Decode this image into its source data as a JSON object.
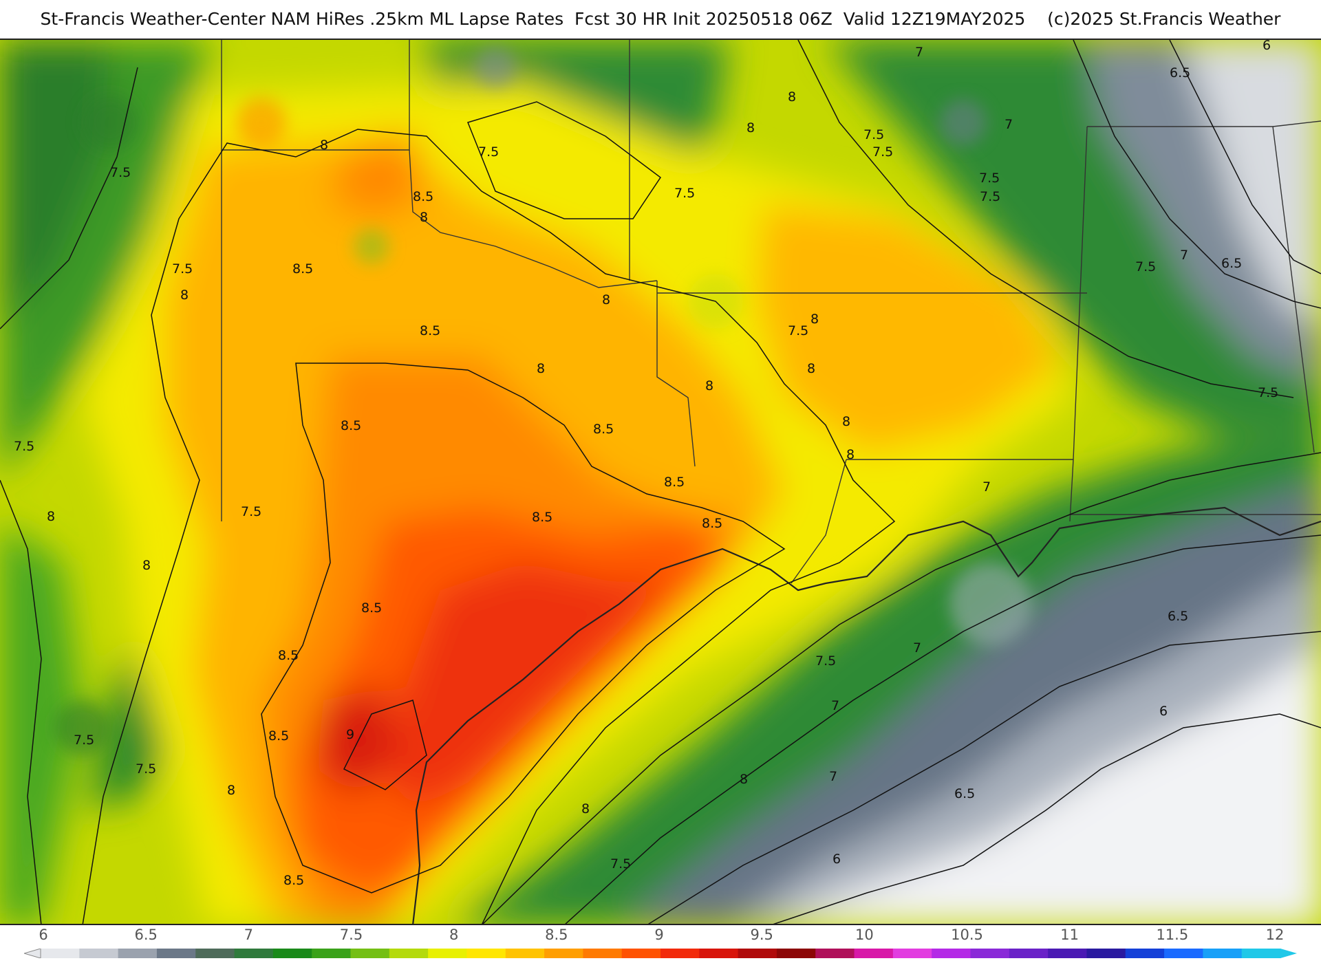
{
  "title": "St-Francis Weather-Center NAM HiRes .25km ML Lapse Rates  Fcst 30 HR Init 20250518 06Z  Valid 12Z19MAY2025    (c)2025 St.Francis Weather",
  "colorbar": {
    "ticks": [
      "6",
      "6.5",
      "7",
      "7.5",
      "8",
      "8.5",
      "9",
      "9.5",
      "10",
      "10.5",
      "11",
      "11.5",
      "12"
    ],
    "colors": [
      "#e6e8ec",
      "#c6cad2",
      "#9aa2ae",
      "#6b7888",
      "#4e6b5a",
      "#2f7a3c",
      "#1a8a1a",
      "#3aa21a",
      "#74bf14",
      "#b4da0c",
      "#e8f000",
      "#ffe600",
      "#ffc300",
      "#ff9e00",
      "#ff7a00",
      "#ff5200",
      "#f22a0a",
      "#d8140a",
      "#b00a0a",
      "#8c0606",
      "#b0105a",
      "#d818a8",
      "#e23ce0",
      "#b42ae6",
      "#8a2ad8",
      "#6a22c8",
      "#4a1ab4",
      "#2a1aa0",
      "#1440d8",
      "#1a6aff",
      "#18a0f8",
      "#20c8e8"
    ]
  },
  "contour_labels": [
    "7.5",
    "7",
    "6.5",
    "6",
    "8",
    "8.5",
    "7.5",
    "8",
    "8.5",
    "8",
    "7.5",
    "8",
    "8",
    "8.5",
    "8",
    "8.5",
    "8.5",
    "8.5",
    "8.5",
    "8.5",
    "8.5",
    "8",
    "7.5",
    "8",
    "8",
    "7.5",
    "8",
    "8.5",
    "9",
    "8.5",
    "7.5",
    "7.5",
    "8",
    "8.5",
    "8",
    "7.5",
    "7.5",
    "7",
    "6.5",
    "6",
    "6",
    "6.5",
    "7",
    "7.5",
    "7.5",
    "7",
    "7.5",
    "8",
    "7",
    "7.5",
    "8",
    "8",
    "7",
    "7.5",
    "7",
    "6.5",
    "7.5",
    "8",
    "8",
    "7.5",
    "7.5"
  ]
}
